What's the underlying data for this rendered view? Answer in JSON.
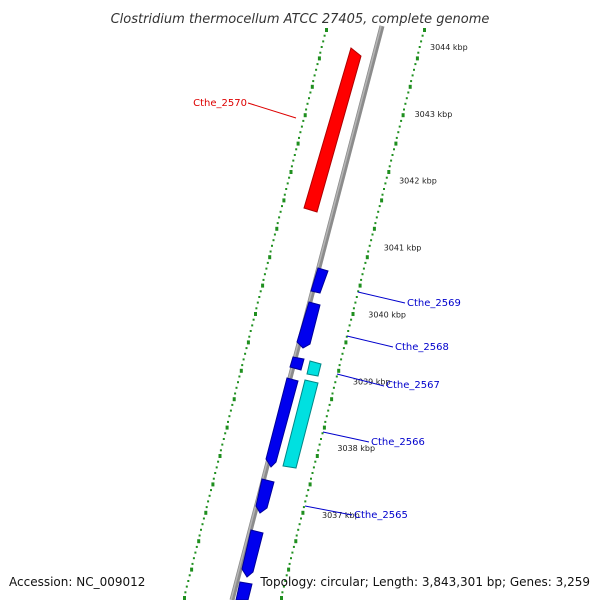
{
  "title": "Clostridium thermocellum ATCC 27405, complete genome",
  "footer": {
    "accession": "Accession: NC_009012",
    "summary": "Topology: circular; Length: 3,843,301 bp; Genes: 3,259"
  },
  "colors": {
    "backbone": "#8c8c8c",
    "ticks": "#1f8f1f",
    "gene_forward": "#ff0000",
    "gene_reverse": "#0000ee",
    "gene_highlight": "#00e0e0",
    "label_forward": "#dd0000",
    "label_reverse": "#0000cc"
  },
  "scale": {
    "unit": "kbp",
    "labels": [
      {
        "kbp": 3044,
        "text": "3044 kbp"
      },
      {
        "kbp": 3043,
        "text": "3043 kbp"
      },
      {
        "kbp": 3042,
        "text": "3042 kbp"
      },
      {
        "kbp": 3041,
        "text": "3041 kbp"
      },
      {
        "kbp": 3040,
        "text": "3040 kbp"
      },
      {
        "kbp": 3039,
        "text": "3039 kbp"
      },
      {
        "kbp": 3038,
        "text": "3038 kbp"
      },
      {
        "kbp": 3037,
        "text": "3037 kbp"
      }
    ]
  },
  "genes": [
    {
      "name": "Cthe_2570",
      "color": "gene_forward"
    },
    {
      "name": "Cthe_2569",
      "color": "gene_reverse"
    },
    {
      "name": "Cthe_2568",
      "color": "gene_reverse"
    },
    {
      "name": "Cthe_2567",
      "color": "gene_highlight"
    },
    {
      "name": "Cthe_2566",
      "color": "gene_highlight"
    },
    {
      "name": "Cthe_2565",
      "color": "gene_reverse"
    }
  ]
}
